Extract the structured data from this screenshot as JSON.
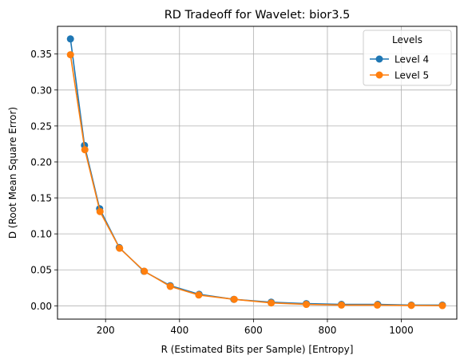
{
  "chart_data": {
    "type": "line",
    "title": "RD Tradeoff for Wavelet: bior3.5",
    "xlabel": "R (Estimated Bits per Sample) [Entropy]",
    "ylabel": "D (Root Mean Square Error)",
    "xlim": [
      70,
      1150
    ],
    "ylim": [
      -0.0185,
      0.3885
    ],
    "xticks": [
      200,
      400,
      600,
      800,
      1000
    ],
    "xtick_labels": [
      "200",
      "400",
      "600",
      "800",
      "1000"
    ],
    "yticks": [
      0.0,
      0.05,
      0.1,
      0.15,
      0.2,
      0.25,
      0.3,
      0.35
    ],
    "ytick_labels": [
      "0.00",
      "0.05",
      "0.10",
      "0.15",
      "0.20",
      "0.25",
      "0.30",
      "0.35"
    ],
    "grid": true,
    "legend_title": "Levels",
    "legend_position": "top-right",
    "series": [
      {
        "name": "Level 4",
        "color": "#1f77b4",
        "marker": "circle",
        "x": [
          105,
          143,
          184,
          237,
          304,
          375,
          453,
          547,
          648,
          743,
          838,
          936,
          1027,
          1111
        ],
        "y": [
          0.371,
          0.223,
          0.135,
          0.081,
          0.048,
          0.028,
          0.016,
          0.009,
          0.005,
          0.003,
          0.002,
          0.002,
          0.001,
          0.001
        ]
      },
      {
        "name": "Level 5",
        "color": "#ff7f0e",
        "marker": "circle",
        "x": [
          105,
          144,
          185,
          238,
          305,
          375,
          452,
          548,
          648,
          743,
          838,
          935,
          1027,
          1111
        ],
        "y": [
          0.349,
          0.217,
          0.131,
          0.08,
          0.048,
          0.027,
          0.015,
          0.009,
          0.004,
          0.002,
          0.001,
          0.001,
          0.0005,
          0.0003
        ]
      }
    ]
  }
}
